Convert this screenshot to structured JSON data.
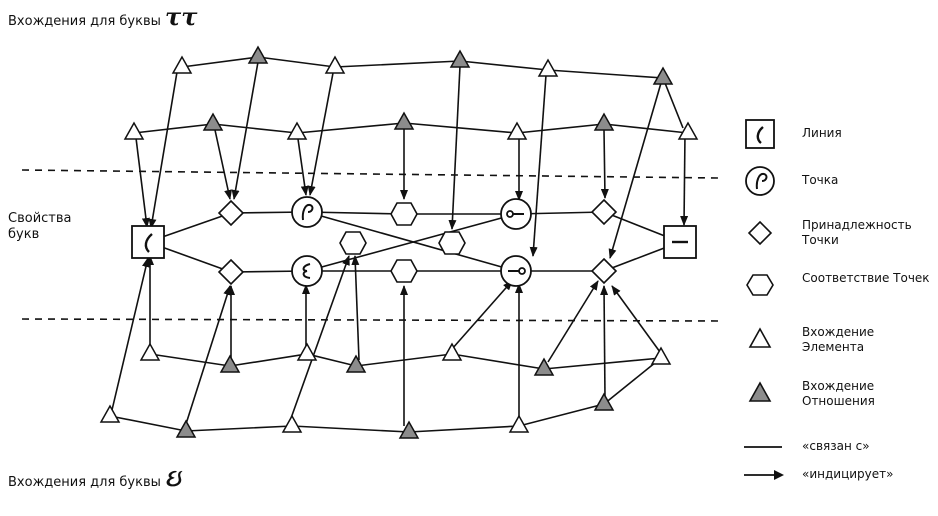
{
  "titles": {
    "top_prefix": "Вхождения для буквы",
    "top_letter": "ττ",
    "bottom_prefix": "Вхождения для буквы",
    "bottom_letter": "ઇ",
    "properties": "Свойства букв"
  },
  "legend": {
    "line": "Линия",
    "point": "Точка",
    "membership": "Принадлежность Точки",
    "correspondence": "Соответствие Точек",
    "element_occurrence": "Вхождение Элемента",
    "relation_occurrence": "Вхождение Отношения",
    "linked": "«связан с»",
    "indicates": "«индицирует»"
  },
  "colors": {
    "stroke": "#111111",
    "gray_fill": "#8c8c8c",
    "white_fill": "#ffffff"
  }
}
